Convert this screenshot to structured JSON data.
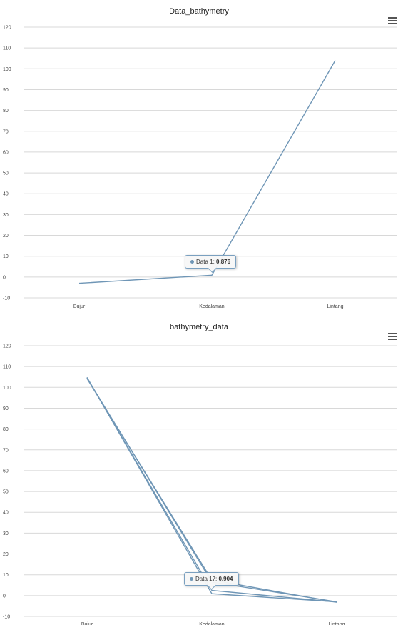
{
  "chart_data": [
    {
      "type": "line",
      "title": "Data_bathymetry",
      "categories": [
        "Bujur",
        "Kedalaman",
        "Lintang"
      ],
      "ylim": [
        -10,
        120
      ],
      "yticks": [
        -10,
        0,
        10,
        20,
        30,
        40,
        50,
        60,
        70,
        80,
        90,
        100,
        110,
        120
      ],
      "grid": true,
      "series": [
        {
          "values": [
            -3,
            0.876,
            104
          ]
        }
      ],
      "tooltip": {
        "series_label": "Data 1",
        "value": "0.876"
      },
      "color": "#6f96b6"
    },
    {
      "type": "line",
      "title": "bathymetry_data",
      "categories": [
        "Bujur",
        "Kedalaman",
        "Lintang"
      ],
      "ylim": [
        -10,
        120
      ],
      "yticks": [
        -10,
        0,
        10,
        20,
        30,
        40,
        50,
        60,
        70,
        80,
        90,
        100,
        110,
        120
      ],
      "grid": true,
      "series": [
        {
          "values": [
            104.8,
            0.904,
            -3
          ]
        },
        {
          "values": [
            104.5,
            6.5,
            -3
          ]
        },
        {
          "values": [
            104.2,
            7.5,
            -3.2
          ]
        },
        {
          "values": [
            104.6,
            2.5,
            -3.1
          ]
        }
      ],
      "tooltip": {
        "series_label": "Data 17",
        "value": "0.904"
      },
      "color": "#6f96b6"
    }
  ]
}
